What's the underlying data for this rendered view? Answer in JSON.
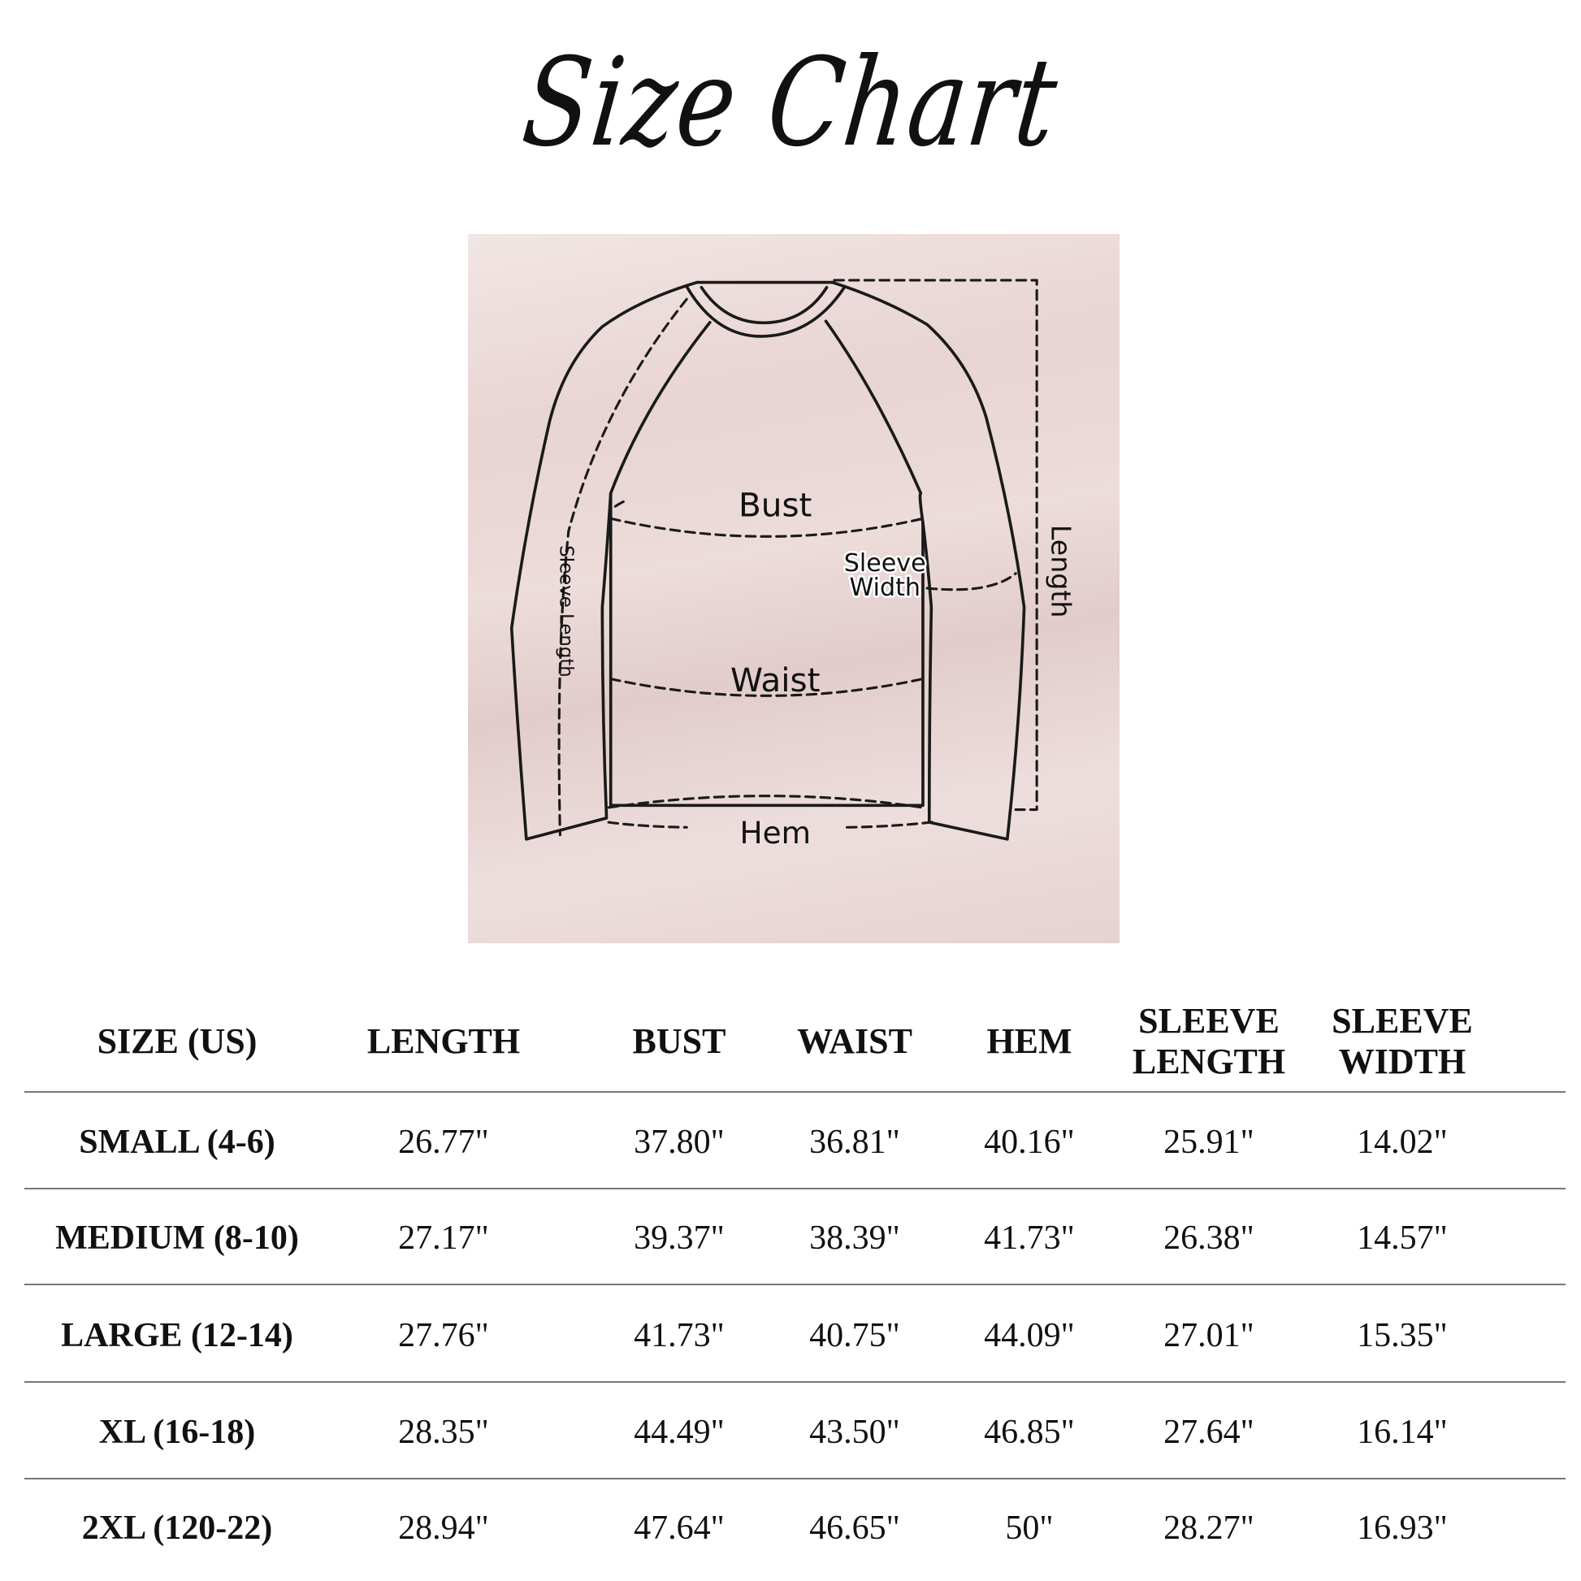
{
  "title": "Size Chart",
  "diagram": {
    "background_color": "#e9d6d6",
    "labels": {
      "bust": "Bust",
      "sleeve_width_1": "Sleeve",
      "sleeve_width_2": "Width",
      "waist": "Waist",
      "hem": "Hem",
      "length": "Length",
      "sleeve_length": "Sleeve Length"
    }
  },
  "table": {
    "headers": [
      [
        "SIZE (US)"
      ],
      [
        "LENGTH"
      ],
      [
        "BUST"
      ],
      [
        "WAIST"
      ],
      [
        "HEM"
      ],
      [
        "SLEEVE",
        "LENGTH"
      ],
      [
        "SLEEVE",
        "WIDTH"
      ]
    ],
    "rows": [
      [
        "SMALL (4-6)",
        "26.77\"",
        "37.80\"",
        "36.81\"",
        "40.16\"",
        "25.91\"",
        "14.02\""
      ],
      [
        "MEDIUM (8-10)",
        "27.17\"",
        "39.37\"",
        "38.39\"",
        "41.73\"",
        "26.38\"",
        "14.57\""
      ],
      [
        "LARGE (12-14)",
        "27.76\"",
        "41.73\"",
        "40.75\"",
        "44.09\"",
        "27.01\"",
        "15.35\""
      ],
      [
        "XL (16-18)",
        "28.35\"",
        "44.49\"",
        "43.50\"",
        "46.85\"",
        "27.64\"",
        "16.14\""
      ],
      [
        "2XL (120-22)",
        "28.94\"",
        "47.64\"",
        "46.65\"",
        "50\"",
        "28.27\"",
        "16.93\""
      ]
    ]
  }
}
